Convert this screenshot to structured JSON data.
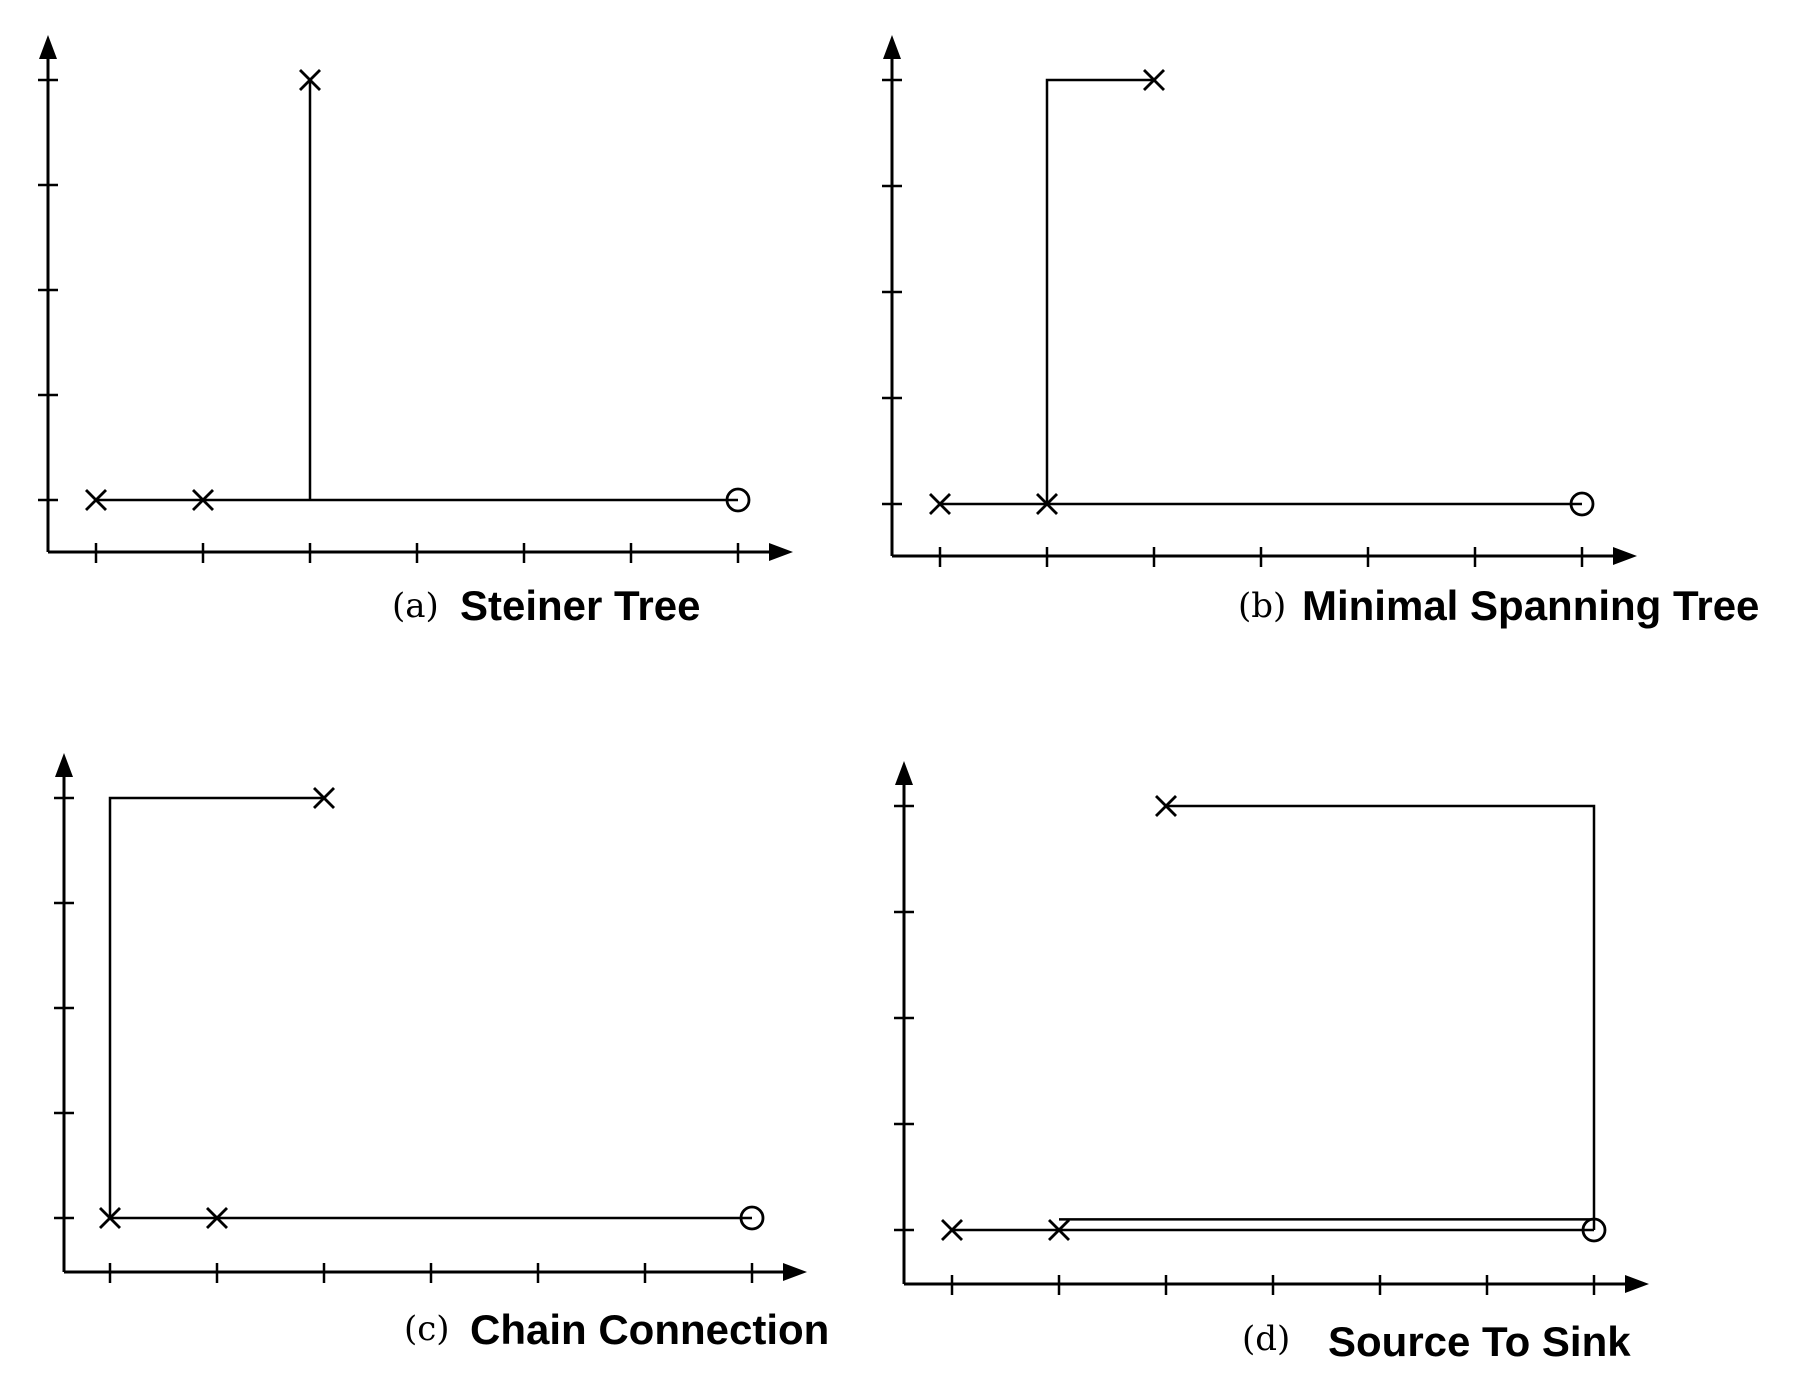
{
  "figure": {
    "panels": [
      {
        "id": "a",
        "caption_letter": "(a)",
        "caption_title": "Steiner Tree",
        "pins": [
          [
            0,
            0
          ],
          [
            1,
            0
          ],
          [
            2,
            4
          ]
        ],
        "sink": [
          6,
          0
        ],
        "route": [
          [
            [
              0,
              0
            ],
            [
              6,
              0
            ]
          ],
          [
            [
              2,
              0
            ],
            [
              2,
              4
            ]
          ]
        ]
      },
      {
        "id": "b",
        "caption_letter": "(b)",
        "caption_title": "Minimal Spanning Tree",
        "pins": [
          [
            0,
            0
          ],
          [
            1,
            0
          ],
          [
            2,
            4
          ]
        ],
        "sink": [
          6,
          0
        ],
        "route": [
          [
            [
              0,
              0
            ],
            [
              6,
              0
            ]
          ],
          [
            [
              1,
              0
            ],
            [
              1,
              4
            ],
            [
              2,
              4
            ]
          ]
        ]
      },
      {
        "id": "c",
        "caption_letter": "(c)",
        "caption_title": "Chain Connection",
        "pins": [
          [
            0,
            0
          ],
          [
            1,
            0
          ],
          [
            2,
            4
          ]
        ],
        "sink": [
          6,
          0
        ],
        "route": [
          [
            [
              0,
              0
            ],
            [
              6,
              0
            ]
          ],
          [
            [
              0,
              0
            ],
            [
              0,
              4
            ],
            [
              2,
              4
            ]
          ]
        ]
      },
      {
        "id": "d",
        "caption_letter": "(d)",
        "caption_title": "Source To Sink",
        "pins": [
          [
            0,
            0
          ],
          [
            1,
            0
          ],
          [
            2,
            4
          ]
        ],
        "sink": [
          6,
          0
        ],
        "route": [
          [
            [
              0,
              0
            ],
            [
              6,
              0
            ]
          ],
          [
            [
              1,
              0.1
            ],
            [
              6,
              0.1
            ]
          ],
          [
            [
              2,
              4
            ],
            [
              6,
              4
            ],
            [
              6,
              0
            ]
          ]
        ]
      }
    ]
  }
}
